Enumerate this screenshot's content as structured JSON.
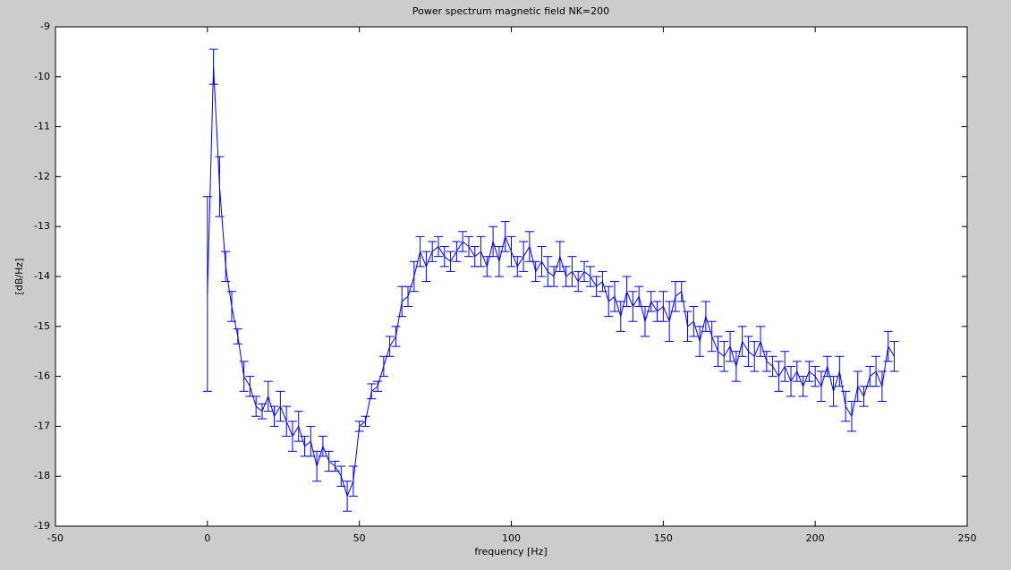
{
  "chart_data": {
    "type": "errorbar",
    "title": "Power spectrum magnetic field NK=200",
    "xlabel": "frequency [Hz]",
    "ylabel": "[dB/Hz]",
    "color": "#0000ff",
    "grid": false,
    "xlim": [
      -50,
      250
    ],
    "xticks": [
      -50,
      0,
      50,
      100,
      150,
      200,
      250
    ],
    "ylim": [
      -19,
      -9
    ],
    "yticks": [
      -19,
      -18,
      -17,
      -16,
      -15,
      -14,
      -13,
      -12,
      -11,
      -10,
      -9
    ],
    "x": [
      0,
      2,
      4,
      6,
      8,
      10,
      12,
      14,
      16,
      18,
      20,
      22,
      24,
      26,
      28,
      30,
      32,
      34,
      36,
      38,
      40,
      42,
      44,
      46,
      48,
      50,
      52,
      54,
      56,
      58,
      60,
      62,
      64,
      66,
      68,
      70,
      72,
      74,
      76,
      78,
      80,
      82,
      84,
      86,
      88,
      90,
      92,
      94,
      96,
      98,
      100,
      102,
      104,
      106,
      108,
      110,
      112,
      114,
      116,
      118,
      120,
      122,
      124,
      126,
      128,
      130,
      132,
      134,
      136,
      138,
      140,
      142,
      144,
      146,
      148,
      150,
      152,
      154,
      156,
      158,
      160,
      162,
      164,
      166,
      168,
      170,
      172,
      174,
      176,
      178,
      180,
      182,
      184,
      186,
      188,
      190,
      192,
      194,
      196,
      198,
      200,
      202,
      204,
      206,
      208,
      210,
      212,
      214,
      216,
      218,
      220,
      222,
      224,
      226
    ],
    "values": [
      -14.35,
      -9.8,
      -12.2,
      -13.8,
      -14.6,
      -15.2,
      -16.0,
      -16.2,
      -16.6,
      -16.7,
      -16.4,
      -16.8,
      -16.6,
      -16.9,
      -17.2,
      -17.0,
      -17.4,
      -17.3,
      -17.8,
      -17.4,
      -17.7,
      -17.8,
      -18.0,
      -18.4,
      -18.1,
      -17.0,
      -16.9,
      -16.3,
      -16.2,
      -15.8,
      -15.4,
      -15.2,
      -14.5,
      -14.4,
      -14.0,
      -13.5,
      -13.8,
      -13.5,
      -13.4,
      -13.6,
      -13.7,
      -13.5,
      -13.3,
      -13.4,
      -13.6,
      -13.5,
      -13.8,
      -13.3,
      -13.7,
      -13.2,
      -13.5,
      -13.8,
      -13.6,
      -13.4,
      -13.9,
      -13.7,
      -13.9,
      -14.0,
      -13.6,
      -14.0,
      -13.9,
      -14.1,
      -13.9,
      -14.0,
      -14.2,
      -14.1,
      -14.5,
      -14.4,
      -14.8,
      -14.3,
      -14.6,
      -14.4,
      -14.9,
      -14.5,
      -14.7,
      -14.6,
      -14.9,
      -14.4,
      -14.3,
      -15.0,
      -14.9,
      -15.3,
      -14.8,
      -15.2,
      -15.5,
      -15.6,
      -15.4,
      -15.8,
      -15.3,
      -15.5,
      -15.6,
      -15.3,
      -15.7,
      -15.8,
      -16.0,
      -15.8,
      -16.1,
      -15.9,
      -16.2,
      -15.9,
      -16.0,
      -16.2,
      -15.8,
      -16.3,
      -15.9,
      -16.6,
      -16.8,
      -16.2,
      -16.4,
      -16.0,
      -15.9,
      -16.2,
      -15.4,
      -15.6
    ],
    "errors": [
      1.95,
      0.35,
      0.6,
      0.3,
      0.3,
      0.15,
      0.3,
      0.2,
      0.2,
      0.15,
      0.3,
      0.2,
      0.3,
      0.3,
      0.3,
      0.3,
      0.2,
      0.3,
      0.3,
      0.2,
      0.2,
      0.1,
      0.2,
      0.3,
      0.3,
      0.1,
      0.1,
      0.15,
      0.1,
      0.2,
      0.2,
      0.2,
      0.3,
      0.2,
      0.3,
      0.3,
      0.3,
      0.2,
      0.2,
      0.2,
      0.2,
      0.2,
      0.2,
      0.2,
      0.2,
      0.3,
      0.2,
      0.3,
      0.3,
      0.3,
      0.3,
      0.2,
      0.3,
      0.3,
      0.2,
      0.3,
      0.3,
      0.2,
      0.3,
      0.2,
      0.3,
      0.2,
      0.2,
      0.2,
      0.2,
      0.2,
      0.3,
      0.3,
      0.3,
      0.3,
      0.3,
      0.2,
      0.3,
      0.2,
      0.2,
      0.3,
      0.4,
      0.3,
      0.2,
      0.3,
      0.3,
      0.3,
      0.3,
      0.3,
      0.3,
      0.3,
      0.3,
      0.3,
      0.3,
      0.3,
      0.3,
      0.3,
      0.2,
      0.2,
      0.3,
      0.3,
      0.3,
      0.2,
      0.2,
      0.2,
      0.2,
      0.3,
      0.2,
      0.3,
      0.3,
      0.3,
      0.3,
      0.3,
      0.2,
      0.2,
      0.3,
      0.3,
      0.3,
      0.3
    ]
  }
}
